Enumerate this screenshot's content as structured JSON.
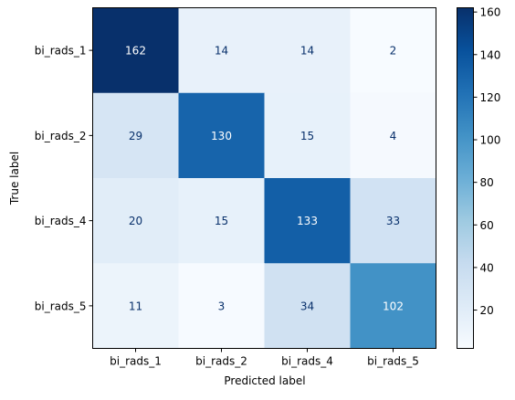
{
  "chart_data": {
    "type": "heatmap",
    "title": "",
    "xlabel": "Predicted label",
    "ylabel": "True label",
    "x_tick_labels": [
      "bi_rads_1",
      "bi_rads_2",
      "bi_rads_4",
      "bi_rads_5"
    ],
    "y_tick_labels": [
      "bi_rads_1",
      "bi_rads_2",
      "bi_rads_4",
      "bi_rads_5"
    ],
    "matrix": [
      [
        162,
        14,
        14,
        2
      ],
      [
        29,
        130,
        15,
        4
      ],
      [
        20,
        15,
        133,
        33
      ],
      [
        11,
        3,
        34,
        102
      ]
    ],
    "colormap": "Blues",
    "value_range": [
      2,
      162
    ],
    "colorbar_ticks": [
      "20",
      "40",
      "60",
      "80",
      "100",
      "120",
      "140",
      "160"
    ],
    "text_color_light": "#ffffff",
    "text_color_dark": "#08306b"
  }
}
